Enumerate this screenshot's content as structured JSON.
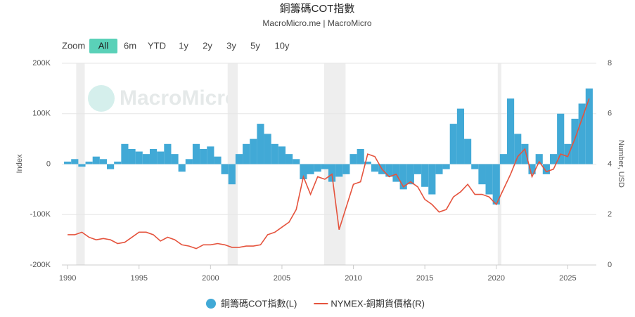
{
  "chart_data": {
    "type": "bar-line",
    "title": "銅籌碼COT指數",
    "subtitle": "MacroMicro.me | MacroMicro",
    "watermark": "MacroMicro",
    "y_label": "Index",
    "y2_label": "Number, USD",
    "x": [
      1990,
      1990.5,
      1991,
      1991.5,
      1992,
      1992.5,
      1993,
      1993.5,
      1994,
      1994.5,
      1995,
      1995.5,
      1996,
      1996.5,
      1997,
      1997.5,
      1998,
      1998.5,
      1999,
      1999.5,
      2000,
      2000.5,
      2001,
      2001.5,
      2002,
      2002.5,
      2003,
      2003.5,
      2004,
      2004.5,
      2005,
      2005.5,
      2006,
      2006.5,
      2007,
      2007.5,
      2008,
      2008.5,
      2009,
      2009.5,
      2010,
      2010.5,
      2011,
      2011.5,
      2012,
      2012.5,
      2013,
      2013.5,
      2014,
      2014.5,
      2015,
      2015.5,
      2016,
      2016.5,
      2017,
      2017.5,
      2018,
      2018.5,
      2019,
      2019.5,
      2020,
      2020.5,
      2021,
      2021.5,
      2022,
      2022.5,
      2023,
      2023.5,
      2024,
      2024.5,
      2025,
      2025.5,
      2026,
      2026.5
    ],
    "series": [
      {
        "name": "銅籌碼COT指數(L)",
        "type": "bar",
        "color": "#41a9d6",
        "values": [
          5000,
          10000,
          -5000,
          5000,
          15000,
          10000,
          -10000,
          5000,
          40000,
          30000,
          25000,
          20000,
          30000,
          25000,
          40000,
          20000,
          -15000,
          10000,
          40000,
          30000,
          35000,
          15000,
          -20000,
          -40000,
          20000,
          40000,
          50000,
          80000,
          60000,
          40000,
          35000,
          20000,
          10000,
          -30000,
          -20000,
          -15000,
          -10000,
          -35000,
          -25000,
          -20000,
          20000,
          30000,
          5000,
          -15000,
          -20000,
          -25000,
          -35000,
          -50000,
          -40000,
          -20000,
          -45000,
          -60000,
          -20000,
          -10000,
          80000,
          110000,
          50000,
          -10000,
          -40000,
          -60000,
          -80000,
          20000,
          130000,
          60000,
          40000,
          -20000,
          20000,
          -20000,
          20000,
          100000,
          40000,
          90000,
          120000,
          150000
        ]
      },
      {
        "name": "NYMEX-銅期貨價格(R)",
        "type": "line",
        "axis": "y2",
        "color": "#e5533d",
        "values": [
          1.2,
          1.2,
          1.3,
          1.1,
          1.0,
          1.05,
          1.0,
          0.85,
          0.9,
          1.1,
          1.3,
          1.3,
          1.2,
          0.95,
          1.1,
          1.0,
          0.8,
          0.75,
          0.65,
          0.8,
          0.8,
          0.85,
          0.8,
          0.7,
          0.7,
          0.75,
          0.75,
          0.8,
          1.2,
          1.3,
          1.5,
          1.7,
          2.2,
          3.5,
          2.8,
          3.5,
          3.4,
          3.6,
          1.4,
          2.3,
          3.2,
          3.3,
          4.4,
          4.3,
          3.8,
          3.5,
          3.6,
          3.1,
          3.3,
          3.1,
          2.6,
          2.4,
          2.1,
          2.2,
          2.7,
          2.9,
          3.2,
          2.8,
          2.8,
          2.7,
          2.4,
          3.0,
          3.6,
          4.3,
          4.6,
          3.5,
          4.1,
          3.7,
          3.8,
          4.4,
          4.3,
          5.0,
          5.8,
          6.6
        ]
      }
    ],
    "bands": [
      [
        1990.6,
        1991.2
      ],
      [
        2001.2,
        2001.9
      ],
      [
        2007.95,
        2009.45
      ],
      [
        2020.1,
        2020.35
      ]
    ],
    "band_color": "#eeeeee",
    "xlim": [
      1989.6,
      2027
    ],
    "xticks": [
      1990,
      1995,
      2000,
      2005,
      2010,
      2015,
      2020,
      2025
    ],
    "ylim": [
      -200000,
      200000
    ],
    "yticks": [
      {
        "value": -200000,
        "label": "-200K"
      },
      {
        "value": -100000,
        "label": "-100K"
      },
      0,
      {
        "value": 100000,
        "label": "100K"
      },
      {
        "value": 200000,
        "label": "200K"
      }
    ],
    "y2lim": [
      0,
      8
    ],
    "y2ticks": [
      0,
      2,
      4,
      6,
      8
    ],
    "grid": true,
    "legend": "bottom"
  },
  "range_selector": {
    "label": "Zoom",
    "buttons": [
      "All",
      "6m",
      "YTD",
      "1y",
      "2y",
      "3y",
      "5y",
      "10y"
    ],
    "selected": 0
  }
}
